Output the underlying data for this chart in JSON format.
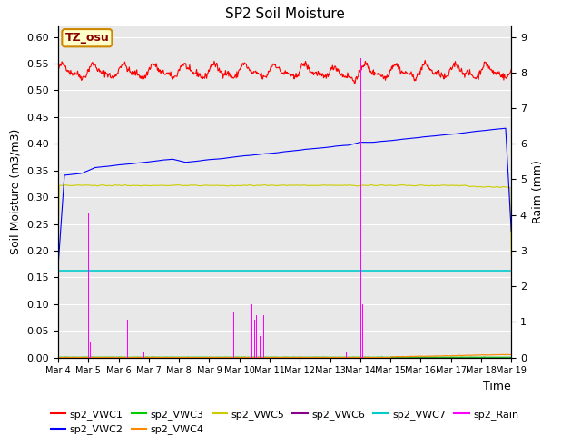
{
  "title": "SP2 Soil Moisture",
  "xlabel": "Time",
  "ylabel_left": "Soil Moisture (m3/m3)",
  "ylabel_right": "Raim (mm)",
  "annotation_text": "TZ_osu",
  "annotation_color": "#cc8800",
  "annotation_bg": "#ffffcc",
  "ylim_left": [
    0.0,
    0.62
  ],
  "ylim_right": [
    0.0,
    9.3
  ],
  "yticks_left": [
    0.0,
    0.05,
    0.1,
    0.15,
    0.2,
    0.25,
    0.3,
    0.35,
    0.4,
    0.45,
    0.5,
    0.55,
    0.6
  ],
  "yticks_right": [
    0.0,
    1.0,
    2.0,
    3.0,
    4.0,
    5.0,
    6.0,
    7.0,
    8.0,
    9.0
  ],
  "bg_color": "#e8e8e8",
  "fig_color": "#ffffff",
  "vwc1_color": "#ff0000",
  "vwc2_color": "#0000ff",
  "vwc3_color": "#00cc00",
  "vwc4_color": "#ff8800",
  "vwc5_color": "#cccc00",
  "vwc6_color": "#880088",
  "vwc7_color": "#00cccc",
  "rain_color": "#ff00ff",
  "n_days": 15,
  "tick_labels": [
    "Mar 4",
    "Mar 5",
    "Mar 6",
    "Mar 7",
    "Mar 8",
    "Mar 9",
    "Mar 10",
    "Mar 11",
    "Mar 12",
    "Mar 13",
    "Mar 14",
    "Mar 15",
    "Mar 16",
    "Mar 17",
    "Mar 18",
    "Mar 19"
  ]
}
